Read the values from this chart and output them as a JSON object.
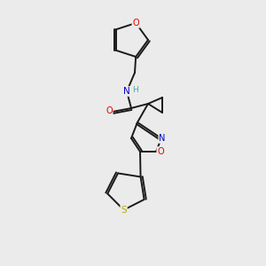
{
  "bg_color": "#ebebeb",
  "bond_color": "#1a1a1a",
  "atom_colors": {
    "O": "#dd0000",
    "N": "#0000cc",
    "S": "#bbaa00",
    "H": "#44aaaa",
    "C": "#1a1a1a"
  }
}
